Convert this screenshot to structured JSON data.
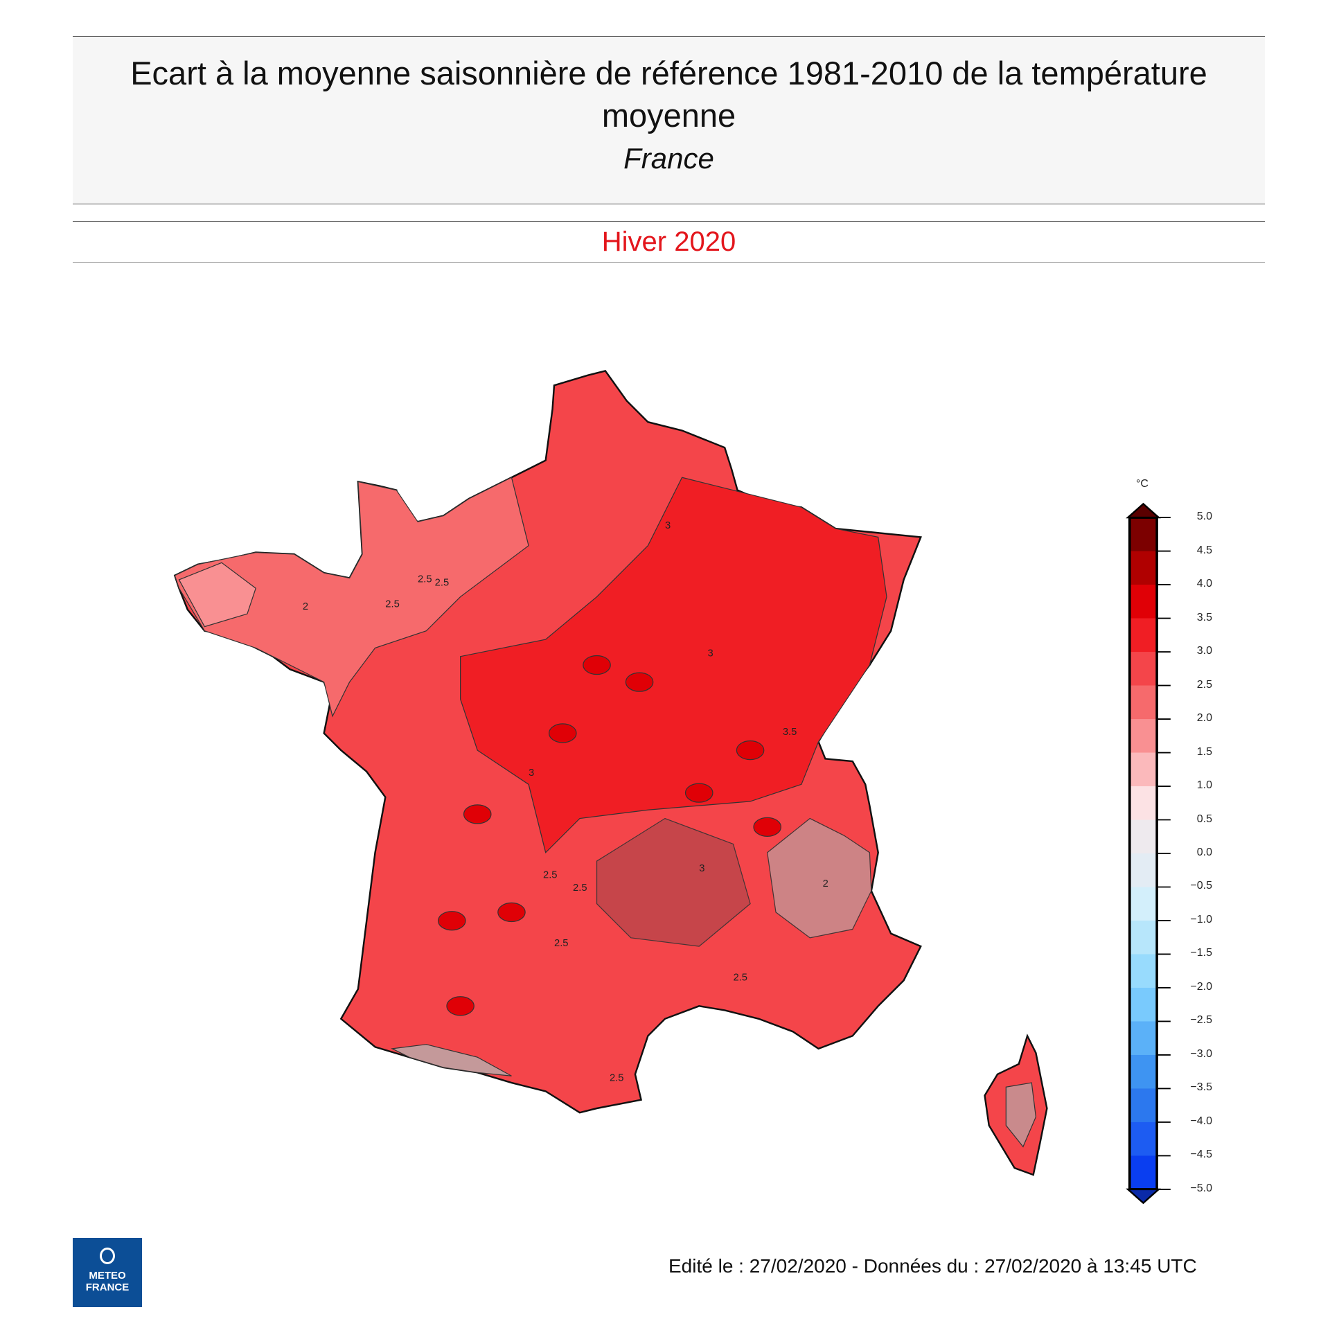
{
  "header": {
    "title": "Ecart à la moyenne saisonnière de référence 1981-2010 de la température moyenne",
    "subtitle": "France",
    "period": "Hiver 2020"
  },
  "map": {
    "region": "France",
    "variable": "anomaly of mean temperature vs 1981-2010",
    "land_fill_dominant": "#f4454a",
    "contour_labels": [
      "2.5",
      "2.5",
      "2",
      "2.5",
      "3",
      "3",
      "3",
      "3",
      "3.5",
      "2.5",
      "2.5",
      "2.5",
      "2.5",
      "2.5",
      "2"
    ]
  },
  "colorbar": {
    "unit": "°C",
    "ticks": [
      "5.0",
      "4.5",
      "4.0",
      "3.5",
      "3.0",
      "2.5",
      "2.0",
      "1.5",
      "1.0",
      "0.5",
      "0.0",
      "−0.5",
      "−1.0",
      "−1.5",
      "−2.0",
      "−2.5",
      "−3.0",
      "−3.5",
      "−4.0",
      "−4.5",
      "−5.0"
    ],
    "colors": [
      "#7c0000",
      "#b00000",
      "#e00006",
      "#f01e24",
      "#f4454a",
      "#f66a6c",
      "#f99092",
      "#fbb9bb",
      "#fce2e4",
      "#eeeaee",
      "#e3ecf4",
      "#d3effb",
      "#b7e6fb",
      "#98dbfd",
      "#79cafd",
      "#5bb1f8",
      "#3e94f2",
      "#2c78ee",
      "#1d5cf2",
      "#0a3ef0"
    ],
    "arrow_top_color": "#5a0000",
    "arrow_bottom_color": "#0a2aa8"
  },
  "footer": {
    "edited": "Edité le : 27/02/2020 - Données du : 27/02/2020 à 13:45 UTC",
    "logo_line1": "METEO",
    "logo_line2": "FRANCE"
  }
}
